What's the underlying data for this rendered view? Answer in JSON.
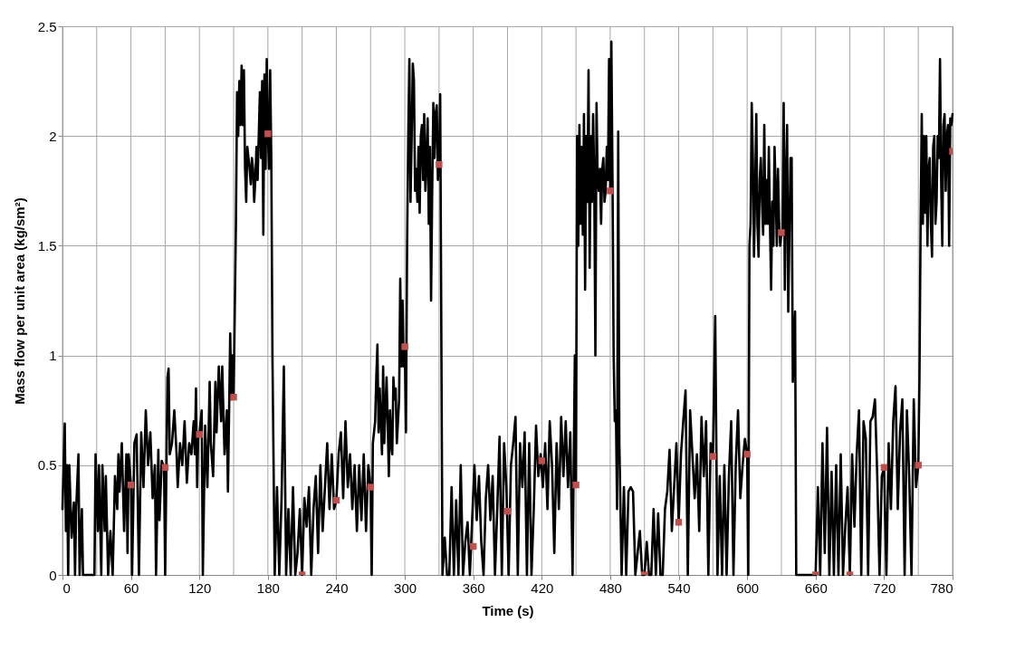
{
  "chart_data": {
    "type": "line",
    "xlabel": "Time (s)",
    "ylabel": "Mass flow per unit area (kg/sm²)",
    "xlim": [
      0,
      780
    ],
    "ylim": [
      0,
      2.5
    ],
    "xticks": [
      0,
      {
        "value": 30,
        "label": null
      },
      60,
      {
        "value": 90,
        "label": null
      },
      120,
      {
        "value": 150,
        "label": null
      },
      180,
      {
        "value": 210,
        "label": null
      },
      240,
      {
        "value": 270,
        "label": null
      },
      300,
      {
        "value": 330,
        "label": null
      },
      360,
      {
        "value": 390,
        "label": null
      },
      420,
      {
        "value": 450,
        "label": null
      },
      480,
      {
        "value": 510,
        "label": null
      },
      540,
      {
        "value": 570,
        "label": null
      },
      600,
      {
        "value": 630,
        "label": null
      },
      660,
      {
        "value": 690,
        "label": null
      },
      720,
      {
        "value": 750,
        "label": null
      },
      780
    ],
    "yticks": [
      0,
      0.5,
      1,
      1.5,
      2,
      2.5
    ],
    "grid": true,
    "series": [
      {
        "color": "#000000",
        "marker": "none",
        "x": [
          0,
          2,
          3,
          4,
          5,
          6,
          8,
          10,
          11,
          12,
          14,
          15,
          17,
          18,
          20,
          28,
          29,
          31,
          32,
          34,
          35,
          37,
          38,
          40,
          42,
          44,
          46,
          48,
          49,
          50,
          52,
          54,
          56,
          57,
          58,
          60,
          61,
          63,
          65,
          67,
          69,
          71,
          73,
          75,
          77,
          79,
          81,
          82,
          84,
          85,
          87,
          89,
          90,
          92,
          93,
          94,
          96,
          98,
          100,
          101,
          103,
          105,
          107,
          109,
          111,
          113,
          115,
          116,
          117,
          118,
          119,
          120,
          122,
          123,
          125,
          127,
          129,
          130,
          132,
          134,
          135,
          137,
          139,
          140,
          142,
          144,
          145,
          147,
          148,
          149,
          150,
          152,
          153,
          154,
          155,
          156,
          157,
          158,
          159,
          160,
          161,
          162,
          163,
          164,
          165,
          166,
          167,
          168,
          169,
          170,
          171,
          172,
          173,
          174,
          175,
          176,
          177,
          178,
          179,
          180,
          181,
          182,
          183,
          184,
          186,
          188,
          190,
          192,
          194,
          196,
          198,
          200,
          202,
          204,
          206,
          208,
          210,
          212,
          214,
          216,
          218,
          220,
          222,
          224,
          226,
          228,
          230,
          232,
          234,
          236,
          238,
          240,
          242,
          244,
          246,
          248,
          250,
          252,
          254,
          256,
          258,
          260,
          262,
          264,
          266,
          268,
          270,
          271,
          272,
          273,
          274,
          275,
          276,
          277,
          278,
          279,
          280,
          281,
          282,
          283,
          284,
          285,
          286,
          287,
          288,
          289,
          290,
          291,
          292,
          293,
          294,
          295,
          296,
          297,
          298,
          299,
          300,
          301,
          302,
          303,
          304,
          305,
          306,
          307,
          308,
          309,
          310,
          311,
          312,
          313,
          314,
          315,
          316,
          317,
          318,
          319,
          320,
          321,
          322,
          323,
          324,
          325,
          326,
          327,
          328,
          329,
          330,
          331,
          333,
          335,
          337,
          339,
          341,
          343,
          345,
          347,
          349,
          351,
          353,
          355,
          357,
          359,
          361,
          363,
          365,
          367,
          369,
          371,
          373,
          375,
          377,
          379,
          381,
          383,
          385,
          387,
          389,
          391,
          393,
          395,
          397,
          399,
          401,
          403,
          405,
          407,
          409,
          411,
          413,
          415,
          417,
          419,
          421,
          423,
          425,
          427,
          429,
          431,
          433,
          435,
          437,
          439,
          441,
          443,
          445,
          447,
          449,
          450,
          451,
          452,
          453,
          454,
          455,
          456,
          457,
          458,
          459,
          460,
          461,
          462,
          463,
          464,
          465,
          466,
          467,
          468,
          469,
          470,
          471,
          472,
          473,
          474,
          475,
          476,
          477,
          478,
          479,
          480,
          481,
          482,
          483,
          484,
          485,
          486,
          487,
          488,
          490,
          492,
          494,
          496,
          498,
          500,
          502,
          504,
          506,
          508,
          510,
          512,
          514,
          516,
          518,
          520,
          522,
          524,
          526,
          528,
          530,
          532,
          534,
          536,
          538,
          540,
          542,
          544,
          546,
          548,
          550,
          552,
          554,
          556,
          558,
          560,
          562,
          564,
          566,
          568,
          570,
          572,
          574,
          576,
          578,
          580,
          582,
          584,
          586,
          588,
          590,
          592,
          594,
          596,
          598,
          600,
          601,
          602,
          603,
          604,
          605,
          606,
          607,
          608,
          609,
          610,
          611,
          612,
          613,
          614,
          615,
          616,
          617,
          618,
          619,
          620,
          621,
          622,
          623,
          624,
          625,
          626,
          627,
          628,
          629,
          630,
          631,
          632,
          633,
          634,
          635,
          636,
          637,
          638,
          639,
          640,
          641,
          642,
          643,
          658,
          660,
          662,
          664,
          666,
          668,
          670,
          672,
          674,
          676,
          678,
          680,
          682,
          684,
          686,
          688,
          690,
          692,
          694,
          696,
          698,
          700,
          702,
          704,
          706,
          708,
          710,
          712,
          714,
          716,
          718,
          720,
          722,
          724,
          726,
          728,
          730,
          732,
          734,
          736,
          738,
          740,
          742,
          744,
          746,
          748,
          750,
          751,
          752,
          753,
          754,
          755,
          756,
          757,
          758,
          759,
          760,
          761,
          762,
          763,
          764,
          765,
          766,
          767,
          768,
          769,
          770,
          771,
          772,
          773,
          774,
          775,
          776,
          777,
          778,
          779,
          780
        ],
        "values": [
          0.3,
          0.69,
          0.2,
          0.5,
          0,
          0.5,
          0.17,
          0.33,
          0,
          0.3,
          0.55,
          0,
          0.3,
          0,
          0,
          0,
          0.55,
          0.2,
          0.5,
          0,
          0.5,
          0.2,
          0.45,
          0,
          0.2,
          0,
          0.45,
          0.3,
          0.55,
          0.38,
          0.6,
          0.2,
          0.55,
          0.1,
          0.55,
          0.41,
          0,
          0.6,
          0.64,
          0,
          0.65,
          0.4,
          0.75,
          0.5,
          0.65,
          0.35,
          0.5,
          0,
          0.57,
          0.25,
          0.52,
          0.49,
          0,
          0.9,
          0.94,
          0.55,
          0.6,
          0.75,
          0.55,
          0.4,
          0.6,
          0.5,
          0.7,
          0.42,
          0.6,
          0.55,
          0.7,
          0.55,
          0.85,
          0.4,
          0.65,
          0.64,
          0.75,
          0,
          0.68,
          0.4,
          0.88,
          0.6,
          0.45,
          0.88,
          0.65,
          0.95,
          0.7,
          0.95,
          0.55,
          0.75,
          0.38,
          1.1,
          0.8,
          1.0,
          0.81,
          1.6,
          2.2,
          2.0,
          2.25,
          2.05,
          2.32,
          2.05,
          2.3,
          1.85,
          1.7,
          1.95,
          1.9,
          1.85,
          1.78,
          1.9,
          1.85,
          1.7,
          1.8,
          1.95,
          1.8,
          2.0,
          2.2,
          1.9,
          2.25,
          1.55,
          2.28,
          1.85,
          2.35,
          2.01,
          1.85,
          2.3,
          1.9,
          1.0,
          0,
          0.4,
          0,
          0.35,
          0.95,
          0,
          0.3,
          0,
          0.4,
          0,
          0.1,
          0.3,
          0,
          0.35,
          0.22,
          0.4,
          0,
          0.3,
          0.45,
          0.1,
          0.5,
          0.2,
          0.4,
          0.6,
          0.3,
          0.55,
          0.3,
          0.34,
          0.55,
          0.65,
          0.35,
          0.7,
          0.4,
          0.55,
          0.3,
          0.5,
          0.2,
          0.5,
          0.25,
          0.55,
          0.2,
          0.5,
          0.4,
          0,
          0.6,
          0.65,
          0.7,
          0.9,
          1.05,
          0.65,
          0.85,
          0.7,
          0.55,
          0.95,
          0.6,
          0.75,
          0.9,
          0.7,
          0.45,
          0.75,
          0.6,
          0.55,
          0.9,
          0.8,
          0.85,
          0.6,
          0.7,
          0.8,
          1.35,
          0.95,
          1.25,
          0.95,
          1.04,
          0.65,
          1.5,
          2.0,
          2.35,
          1.7,
          2.0,
          2.33,
          2.25,
          1.75,
          1.85,
          1.7,
          1.95,
          1.65,
          2.0,
          2.05,
          1.8,
          2.1,
          1.75,
          1.9,
          2.08,
          1.6,
          1.95,
          1.25,
          1.75,
          2.15,
          1.9,
          2.1,
          2.14,
          1.8,
          1.87,
          2.19,
          0,
          0.17,
          0,
          0,
          0.4,
          0,
          0.34,
          0,
          0.5,
          0,
          0.15,
          0.24,
          0,
          0.25,
          0.5,
          0.25,
          0.45,
          0.15,
          0,
          0.35,
          0.5,
          0.25,
          0.45,
          0,
          0.3,
          0.63,
          0,
          0.6,
          0.4,
          0,
          0.5,
          0.6,
          0.72,
          0,
          0.6,
          0.4,
          0.65,
          0,
          0.6,
          0,
          0.3,
          0.68,
          0.45,
          0.55,
          0.4,
          0.6,
          0.3,
          0.7,
          0.5,
          0.1,
          0.6,
          0.3,
          0.72,
          0.45,
          0.7,
          0.4,
          0.65,
          0,
          1.0,
          0.41,
          2.0,
          1.5,
          2.05,
          1.6,
          1.95,
          1.55,
          2.1,
          1.3,
          2.0,
          1.7,
          2.3,
          1.4,
          2.0,
          1.7,
          2.1,
          1.8,
          1.0,
          2.15,
          1.8,
          1.75,
          1.85,
          1.6,
          1.85,
          1.9,
          1.7,
          1.75,
          1.95,
          1.8,
          2.35,
          1.75,
          2.43,
          1.8,
          1.0,
          0.7,
          0.75,
          0.3,
          2.02,
          0.6,
          0,
          0.4,
          0,
          0.38,
          0.4,
          0.38,
          0,
          0.1,
          0.2,
          0,
          0,
          0.15,
          0,
          0,
          0.3,
          0,
          0.28,
          0,
          0,
          0.3,
          0.38,
          0.57,
          0.2,
          0.4,
          0.6,
          0.24,
          0.55,
          0.7,
          0.84,
          0,
          0.75,
          0.55,
          0.35,
          0.55,
          0.2,
          0.72,
          0.45,
          0.7,
          0,
          0.6,
          0.54,
          1.18,
          0,
          0.45,
          0,
          0.5,
          0,
          0.45,
          0.7,
          0,
          0.5,
          0.75,
          0.35,
          0.5,
          0.62,
          0.55,
          0,
          1.5,
          1.6,
          2.15,
          1.9,
          1.45,
          1.75,
          2.1,
          1.6,
          1.45,
          1.8,
          1.9,
          1.7,
          1.55,
          2.05,
          1.6,
          1.8,
          1.6,
          1.95,
          1.6,
          1.3,
          1.7,
          1.5,
          1.95,
          1.75,
          1.5,
          1.85,
          1.6,
          1.5,
          1.56,
          1.55,
          2.15,
          1.3,
          1.8,
          2.05,
          1.2,
          1.55,
          1.9,
          1.9,
          0.88,
          1.05,
          1.2,
          0,
          0,
          0,
          0.4,
          0,
          0.6,
          0.1,
          0.67,
          0,
          0.47,
          0,
          0.5,
          0,
          0.55,
          0,
          0.22,
          0.4,
          0,
          0.55,
          0.22,
          0.55,
          0.75,
          0,
          0.7,
          0.62,
          0,
          0.7,
          0.72,
          0.8,
          0.45,
          0,
          0.45,
          0.49,
          0,
          0.6,
          0.3,
          0.7,
          0.86,
          0.3,
          0.65,
          0.8,
          0,
          0.75,
          0.45,
          0,
          0.8,
          0.4,
          0.5,
          0.9,
          1.6,
          2.1,
          1.6,
          2.0,
          1.65,
          2.0,
          1.5,
          1.85,
          1.9,
          1.6,
          1.45,
          1.95,
          2.0,
          1.6,
          1.7,
          2.0,
          1.9,
          2.35,
          1.8,
          1.5,
          2.05,
          2.1,
          1.75,
          2.0,
          2.05,
          1.5,
          2.08,
          2.05,
          2.1
        ]
      },
      {
        "type": "scatter",
        "color": "#c0504d",
        "marker": "square",
        "x": [
          60,
          90,
          120,
          150,
          180,
          210,
          240,
          270,
          300,
          330,
          360,
          390,
          420,
          450,
          480,
          510,
          540,
          570,
          600,
          630,
          660,
          690,
          720,
          750,
          780
        ],
        "values": [
          0.41,
          0.49,
          0.64,
          0.81,
          2.01,
          0,
          0.34,
          0.4,
          1.04,
          1.87,
          0.13,
          0.29,
          0.52,
          0.41,
          1.75,
          0,
          0.24,
          0.54,
          0.55,
          1.56,
          0,
          0,
          0.49,
          0.5,
          1.93
        ]
      }
    ]
  }
}
